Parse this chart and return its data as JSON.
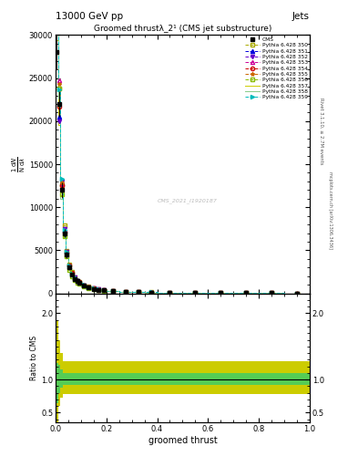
{
  "title": "13000 GeV pp",
  "subtitle": "Groomed thrustλ_2¹ (CMS jet substructure)",
  "xlabel": "groomed thrust",
  "ylabel_ratio": "Ratio to CMS",
  "right_label_top": "Jets",
  "right_label_side": "Rivet 3.1.10, ≥ 2.7M events",
  "right_label_side2": "mcplots.cern.ch [arXiv:1306.3436]",
  "watermark": "CMS_2021_I1920187",
  "cms_label": "CMS",
  "series_labels": [
    "Pythia 6.428 350",
    "Pythia 6.428 351",
    "Pythia 6.428 352",
    "Pythia 6.428 353",
    "Pythia 6.428 354",
    "Pythia 6.428 355",
    "Pythia 6.428 356",
    "Pythia 6.428 357",
    "Pythia 6.428 358",
    "Pythia 6.428 359"
  ],
  "series_colors": [
    "#aaaa00",
    "#0000dd",
    "#6600cc",
    "#cc0099",
    "#cc0000",
    "#cc6600",
    "#88bb00",
    "#cccc00",
    "#88cc88",
    "#00bbbb"
  ],
  "series_markers": [
    "s",
    "^",
    "v",
    "^",
    "o",
    "*",
    "s",
    null,
    null,
    ">"
  ],
  "series_linestyles": [
    "--",
    "--",
    "--",
    "--",
    "--",
    "--",
    "--",
    "-",
    "-",
    "--"
  ],
  "series_fillstyle": [
    "none",
    "full",
    "full",
    "none",
    "none",
    "none",
    "none",
    "none",
    "none",
    "full"
  ],
  "xbins": [
    0.0,
    0.01,
    0.02,
    0.03,
    0.04,
    0.05,
    0.06,
    0.07,
    0.08,
    0.09,
    0.1,
    0.12,
    0.14,
    0.16,
    0.18,
    0.2,
    0.25,
    0.3,
    0.35,
    0.4,
    0.5,
    0.6,
    0.7,
    0.8,
    0.9,
    1.0
  ],
  "cms_values": [
    28000,
    22000,
    12000,
    7000,
    4500,
    3000,
    2200,
    1700,
    1400,
    1200,
    900,
    700,
    550,
    430,
    350,
    270,
    200,
    150,
    120,
    90,
    70,
    55,
    40,
    25,
    15
  ],
  "cms_errors": [
    2000,
    1500,
    900,
    500,
    350,
    250,
    180,
    140,
    110,
    90,
    70,
    55,
    45,
    35,
    28,
    22,
    16,
    12,
    10,
    7,
    6,
    5,
    4,
    3,
    2
  ],
  "ratio_yellow_lo": [
    0.25,
    0.6,
    0.72,
    0.78,
    0.78,
    0.78,
    0.78,
    0.78,
    0.78,
    0.78,
    0.78,
    0.78,
    0.78,
    0.78,
    0.78,
    0.78,
    0.78,
    0.78,
    0.78,
    0.78,
    0.78,
    0.78,
    0.78,
    0.78,
    0.78
  ],
  "ratio_yellow_hi": [
    1.9,
    1.6,
    1.4,
    1.28,
    1.28,
    1.28,
    1.28,
    1.28,
    1.28,
    1.28,
    1.28,
    1.28,
    1.28,
    1.28,
    1.28,
    1.28,
    1.28,
    1.28,
    1.28,
    1.28,
    1.28,
    1.28,
    1.28,
    1.28,
    1.28
  ],
  "ratio_green_lo": [
    0.65,
    0.8,
    0.88,
    0.92,
    0.92,
    0.92,
    0.92,
    0.92,
    0.92,
    0.92,
    0.92,
    0.92,
    0.92,
    0.92,
    0.92,
    0.92,
    0.92,
    0.92,
    0.92,
    0.92,
    0.92,
    0.92,
    0.92,
    0.92,
    0.92
  ],
  "ratio_green_hi": [
    1.25,
    1.22,
    1.15,
    1.1,
    1.1,
    1.1,
    1.1,
    1.1,
    1.1,
    1.1,
    1.1,
    1.1,
    1.1,
    1.1,
    1.1,
    1.1,
    1.1,
    1.1,
    1.1,
    1.1,
    1.1,
    1.1,
    1.1,
    1.1,
    1.1
  ],
  "main_ylim": [
    0,
    30000
  ],
  "main_yticks": [
    0,
    5000,
    10000,
    15000,
    20000,
    25000,
    30000
  ],
  "ratio_ylim": [
    0.35,
    2.3
  ],
  "ratio_yticks": [
    0.5,
    1.0,
    2.0
  ],
  "xlim": [
    0.0,
    1.0
  ]
}
